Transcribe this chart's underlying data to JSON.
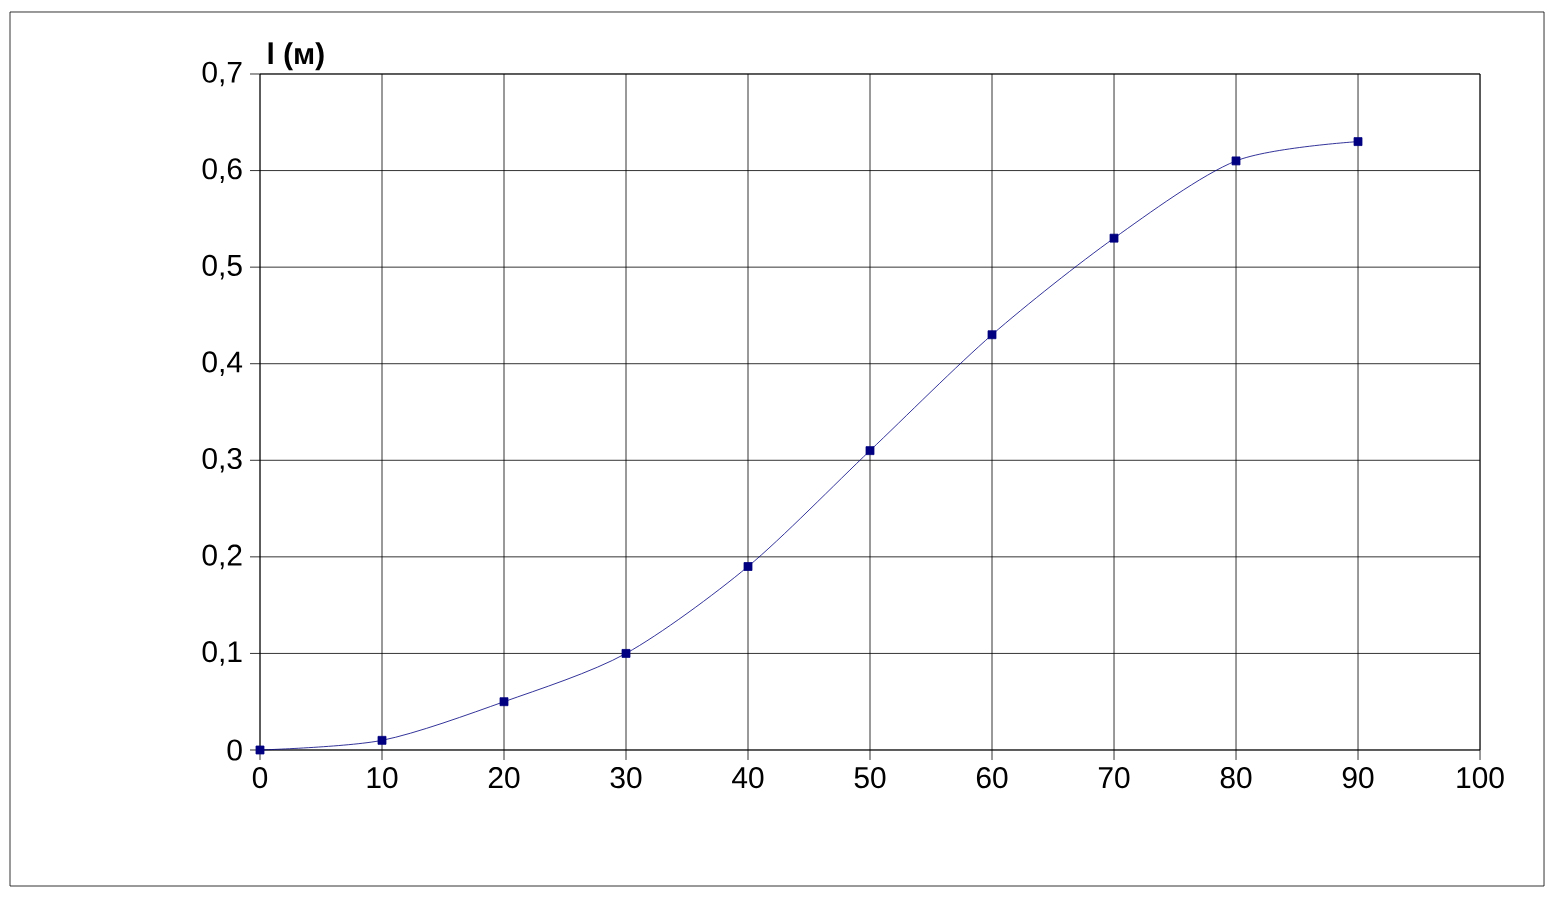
{
  "chart_data": {
    "type": "line",
    "ylabel": "l (м)",
    "x": [
      0,
      10,
      20,
      30,
      40,
      50,
      60,
      70,
      80,
      90
    ],
    "series": [
      {
        "color": "#000080",
        "values": [
          0,
          0.01,
          0.05,
          0.1,
          0.19,
          0.31,
          0.43,
          0.53,
          0.61,
          0.63
        ]
      }
    ],
    "xlim": [
      0,
      100
    ],
    "xticks": [
      0,
      10,
      20,
      30,
      40,
      50,
      60,
      70,
      80,
      90,
      100
    ],
    "ylim": [
      0,
      0.7
    ],
    "yticks": [
      {
        "value": 0,
        "label": "0"
      },
      {
        "value": 0.1,
        "label": "0,1"
      },
      {
        "value": 0.2,
        "label": "0,2"
      },
      {
        "value": 0.3,
        "label": "0,3"
      },
      {
        "value": 0.4,
        "label": "0,4"
      },
      {
        "value": 0.5,
        "label": "0,5"
      },
      {
        "value": 0.6,
        "label": "0,6"
      },
      {
        "value": 0.7,
        "label": "0,7"
      }
    ],
    "grid": true,
    "marker": "square",
    "line_style": "solid"
  }
}
